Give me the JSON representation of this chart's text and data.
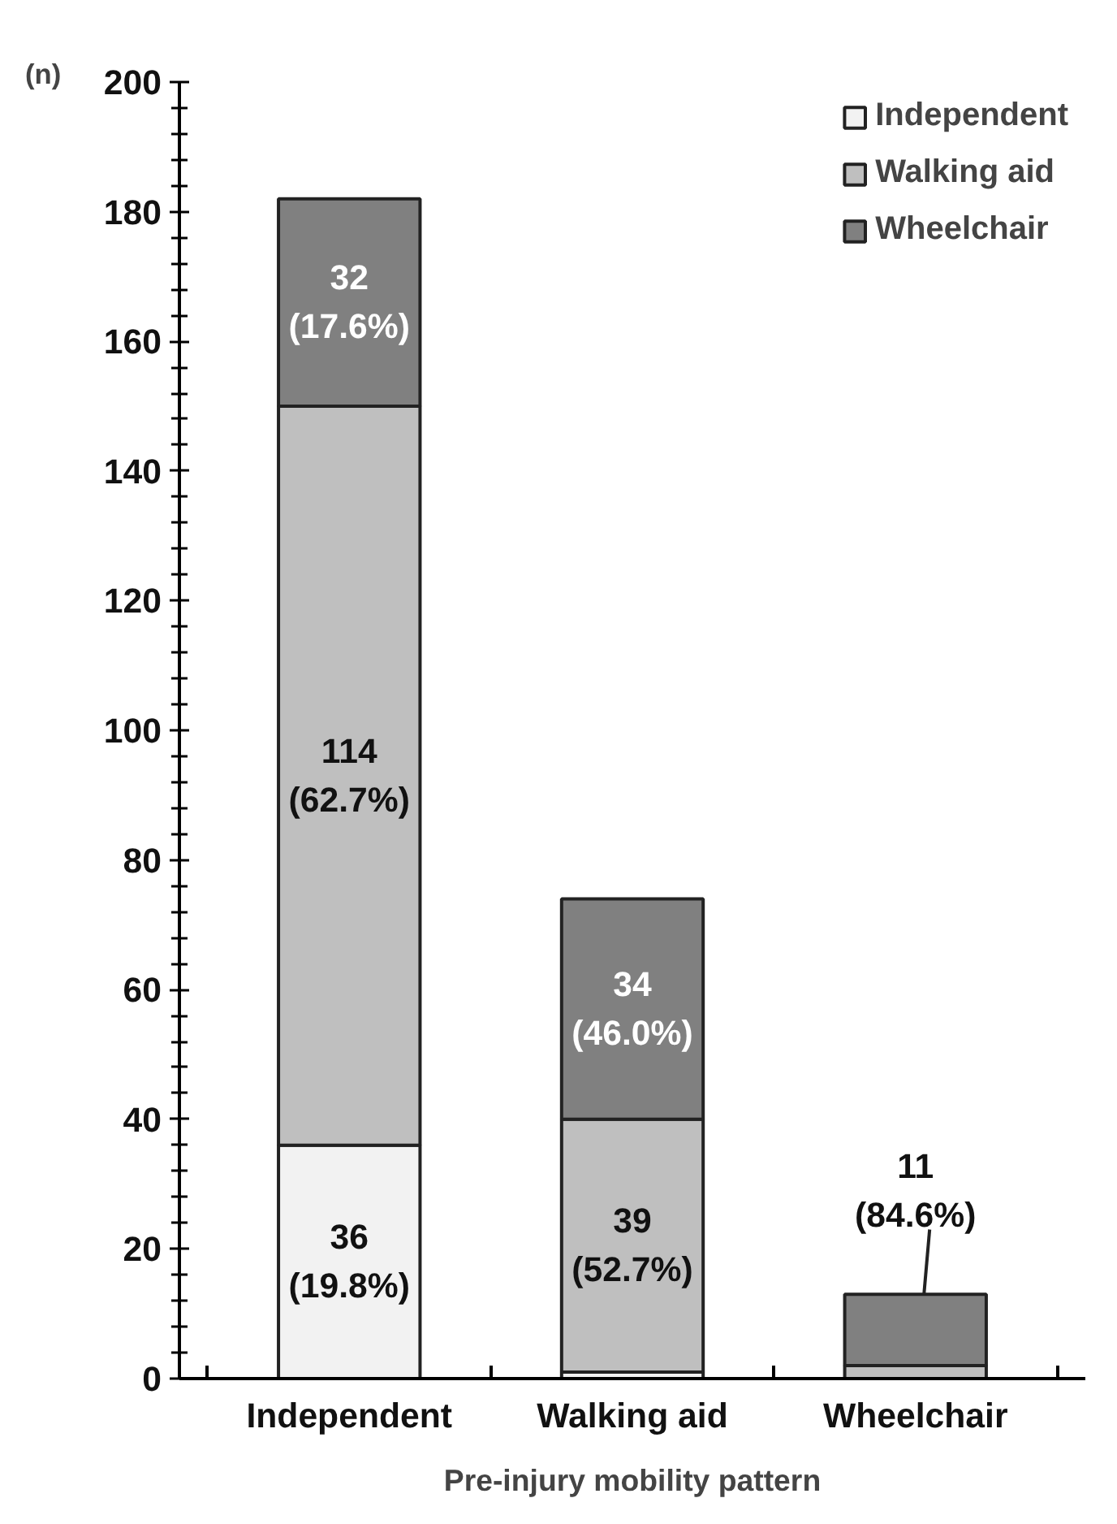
{
  "chart_data": {
    "type": "bar",
    "stacked": true,
    "xlabel": "Pre-injury mobility pattern",
    "ylabel": "(n)",
    "categories": [
      "Independent",
      "Walking aid",
      "Wheelchair"
    ],
    "series": [
      {
        "name": "Independent",
        "color": "#f2f2f2",
        "values": [
          36,
          1,
          0
        ],
        "value_labels": [
          "36\n(19.8%)",
          null,
          null
        ]
      },
      {
        "name": "Walking aid",
        "color": "#bfbfbf",
        "values": [
          114,
          39,
          2
        ],
        "value_labels": [
          "114\n(62.7%)",
          "39\n(52.7%)",
          null
        ]
      },
      {
        "name": "Wheelchair",
        "color": "#808080",
        "values": [
          32,
          34,
          11
        ],
        "value_labels": [
          "32\n(17.6%)",
          "34\n(46.0%)",
          "11\n(84.6%)"
        ]
      }
    ],
    "ylim": [
      0,
      200
    ],
    "yticks": [
      0,
      {
        "value": 4,
        "label": null
      },
      {
        "value": 8,
        "label": null
      },
      {
        "value": 12,
        "label": null
      },
      {
        "value": 16,
        "label": null
      },
      20,
      {
        "value": 24,
        "label": null
      },
      {
        "value": 28,
        "label": null
      },
      {
        "value": 32,
        "label": null
      },
      {
        "value": 36,
        "label": null
      },
      40,
      {
        "value": 44,
        "label": null
      },
      {
        "value": 48,
        "label": null
      },
      {
        "value": 52,
        "label": null
      },
      {
        "value": 56,
        "label": null
      },
      60,
      {
        "value": 64,
        "label": null
      },
      {
        "value": 68,
        "label": null
      },
      {
        "value": 72,
        "label": null
      },
      {
        "value": 76,
        "label": null
      },
      80,
      {
        "value": 84,
        "label": null
      },
      {
        "value": 88,
        "label": null
      },
      {
        "value": 92,
        "label": null
      },
      {
        "value": 96,
        "label": null
      },
      100,
      {
        "value": 104,
        "label": null
      },
      {
        "value": 108,
        "label": null
      },
      {
        "value": 112,
        "label": null
      },
      {
        "value": 116,
        "label": null
      },
      120,
      {
        "value": 124,
        "label": null
      },
      {
        "value": 128,
        "label": null
      },
      {
        "value": 132,
        "label": null
      },
      {
        "value": 136,
        "label": null
      },
      140,
      {
        "value": 144,
        "label": null
      },
      {
        "value": 148,
        "label": null
      },
      {
        "value": 152,
        "label": null
      },
      {
        "value": 156,
        "label": null
      },
      160,
      {
        "value": 164,
        "label": null
      },
      {
        "value": 168,
        "label": null
      },
      {
        "value": 172,
        "label": null
      },
      {
        "value": 176,
        "label": null
      },
      180,
      {
        "value": 184,
        "label": null
      },
      {
        "value": 188,
        "label": null
      },
      {
        "value": 192,
        "label": null
      },
      {
        "value": 196,
        "label": null
      },
      200
    ],
    "grid": false,
    "legend": "top right"
  }
}
